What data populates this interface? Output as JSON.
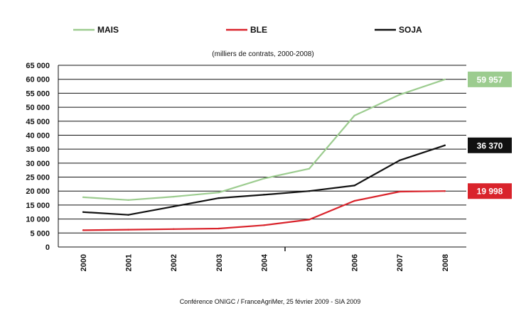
{
  "chart_data": {
    "type": "line",
    "subtitle": "(milliers de contrats, 2000-2008)",
    "source": "Conférence ONIGC / FranceAgriMer, 25 février 2009 - SIA 2009",
    "x": [
      "2000",
      "2001",
      "2002",
      "2003",
      "2004",
      "2005",
      "2006",
      "2007",
      "2008"
    ],
    "ylim": [
      0,
      65000
    ],
    "y_ticks": [
      "0",
      "5000",
      "10000",
      "15000",
      "20000",
      "25000",
      "30000",
      "35000",
      "40000",
      "45000",
      "50000",
      "55000",
      "60000",
      "65000"
    ],
    "grid": true,
    "legend_position": "top",
    "series": [
      {
        "name": "MAIS",
        "color": "#9ccc8f",
        "values": [
          17800,
          16800,
          18000,
          19500,
          24500,
          28000,
          47000,
          54500,
          59957
        ],
        "end_label": "59 957"
      },
      {
        "name": "BLE",
        "color": "#d9232b",
        "values": [
          6000,
          6200,
          6400,
          6600,
          7800,
          9800,
          16500,
          19800,
          19998
        ],
        "end_label": "19 998"
      },
      {
        "name": "SOJA",
        "color": "#111111",
        "values": [
          12500,
          11500,
          14500,
          17500,
          18700,
          20000,
          22000,
          31000,
          36370
        ],
        "end_label": "36 370"
      }
    ]
  }
}
